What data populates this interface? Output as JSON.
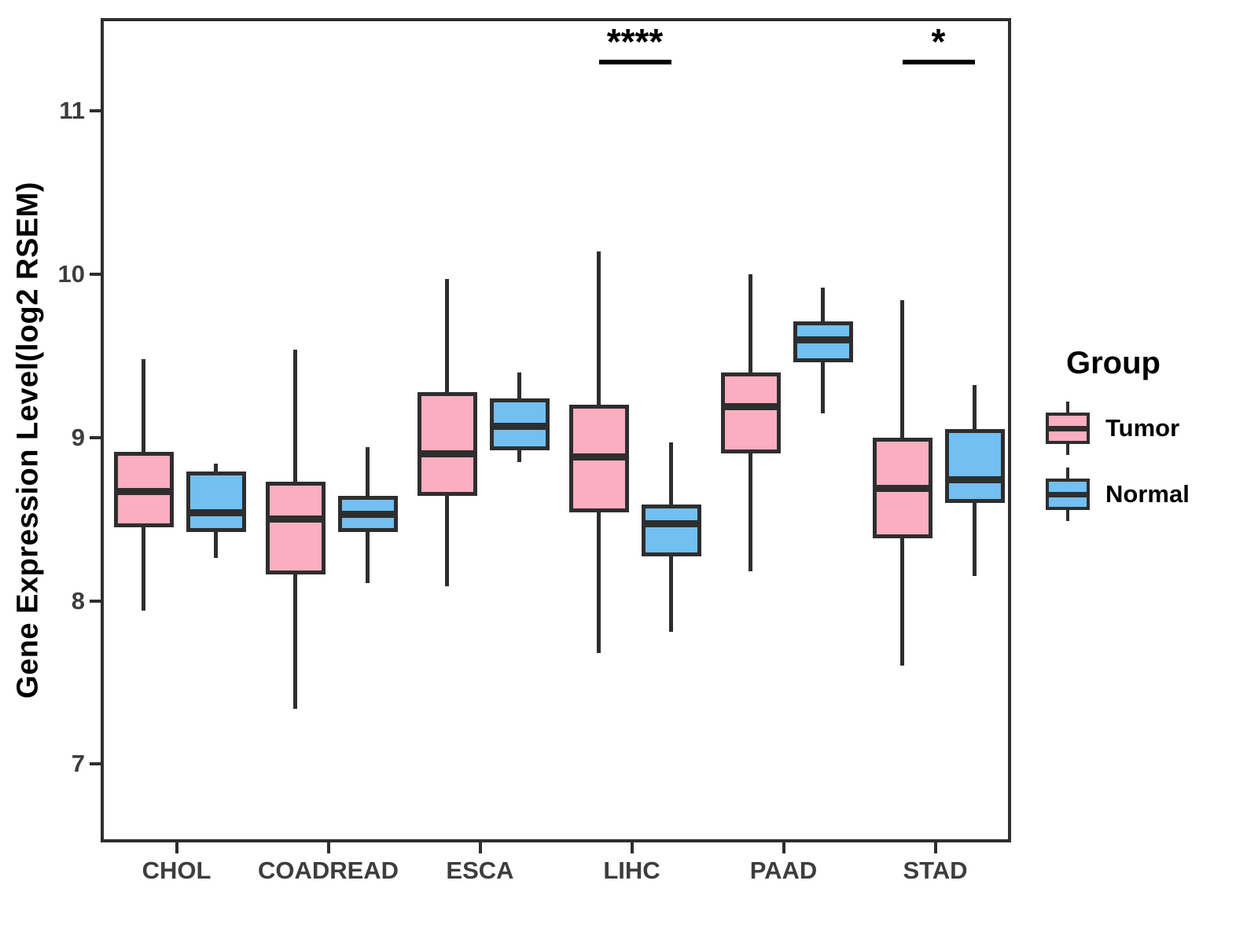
{
  "figure": {
    "y_axis_title": "Gene Expression Level(log2 RSEM)"
  },
  "legend": {
    "title": "Group",
    "entries": [
      {
        "label": "Tumor",
        "color": "#FBAEC0"
      },
      {
        "label": "Normal",
        "color": "#72BFF2"
      }
    ]
  },
  "style": {
    "tumor_fill": "#FBAEC0",
    "normal_fill": "#72BFF2",
    "box_stroke": "#2e2e2e",
    "axis_text_color": "#3d3d3d",
    "annotation_color": "#000000"
  },
  "chart_data": {
    "type": "boxplot",
    "title": "",
    "xlabel": "",
    "ylabel": "Gene Expression Level(log2 RSEM)",
    "categories": [
      "CHOL",
      "COADREAD",
      "ESCA",
      "LIHC",
      "PAAD",
      "STAD"
    ],
    "y_ticks": [
      7,
      8,
      9,
      10,
      11
    ],
    "ylim": [
      6.52,
      11.57
    ],
    "grid": false,
    "legend_position": "right",
    "series": [
      {
        "name": "Tumor",
        "color": "#FBAEC0",
        "boxes": [
          {
            "category": "CHOL",
            "min": 7.96,
            "q1": 8.47,
            "median": 8.69,
            "q3": 8.93,
            "max": 9.5
          },
          {
            "category": "COADREAD",
            "min": 7.36,
            "q1": 8.18,
            "median": 8.52,
            "q3": 8.75,
            "max": 9.56
          },
          {
            "category": "ESCA",
            "min": 8.11,
            "q1": 8.66,
            "median": 8.92,
            "q3": 9.3,
            "max": 9.99
          },
          {
            "category": "LIHC",
            "min": 7.7,
            "q1": 8.56,
            "median": 8.9,
            "q3": 9.22,
            "max": 10.16
          },
          {
            "category": "PAAD",
            "min": 8.2,
            "q1": 8.92,
            "median": 9.21,
            "q3": 9.42,
            "max": 10.02
          },
          {
            "category": "STAD",
            "min": 7.62,
            "q1": 8.4,
            "median": 8.71,
            "q3": 9.02,
            "max": 9.86
          }
        ]
      },
      {
        "name": "Normal",
        "color": "#72BFF2",
        "boxes": [
          {
            "category": "CHOL",
            "min": 8.28,
            "q1": 8.44,
            "median": 8.56,
            "q3": 8.81,
            "max": 8.86
          },
          {
            "category": "COADREAD",
            "min": 8.13,
            "q1": 8.44,
            "median": 8.55,
            "q3": 8.66,
            "max": 8.96
          },
          {
            "category": "ESCA",
            "min": 8.87,
            "q1": 8.94,
            "median": 9.09,
            "q3": 9.26,
            "max": 9.42
          },
          {
            "category": "LIHC",
            "min": 7.83,
            "q1": 8.29,
            "median": 8.49,
            "q3": 8.61,
            "max": 8.99
          },
          {
            "category": "PAAD",
            "min": 9.17,
            "q1": 9.48,
            "median": 9.62,
            "q3": 9.73,
            "max": 9.94
          },
          {
            "category": "STAD",
            "min": 8.17,
            "q1": 8.62,
            "median": 8.76,
            "q3": 9.07,
            "max": 9.34
          }
        ]
      }
    ],
    "significance": [
      {
        "category": "LIHC",
        "label": "****"
      },
      {
        "category": "STAD",
        "label": "*"
      }
    ]
  }
}
